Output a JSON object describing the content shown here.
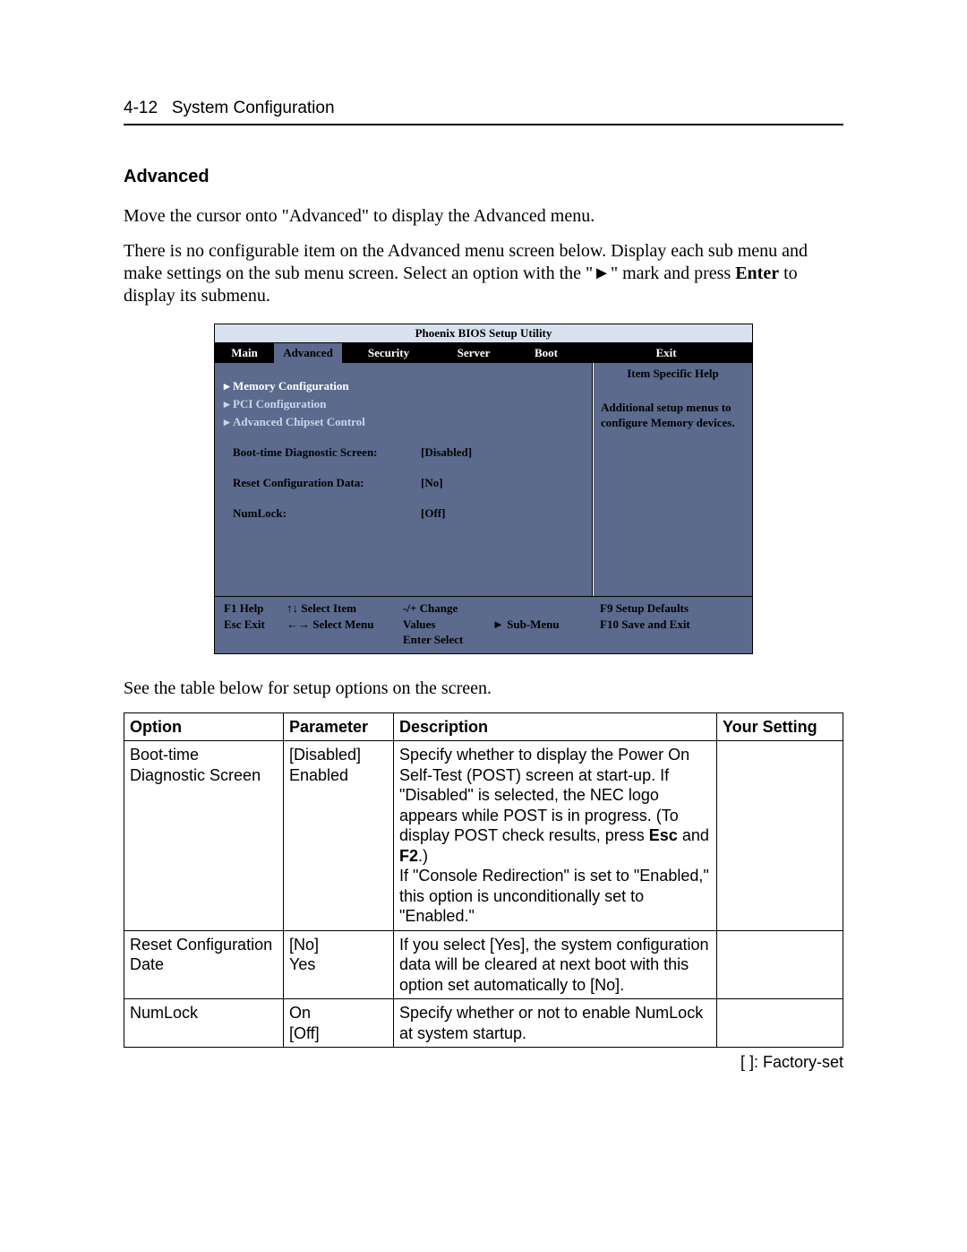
{
  "header": {
    "page_num": "4-12",
    "title": "System Configuration"
  },
  "section": {
    "heading": "Advanced",
    "para1": "Move the cursor onto \"Advanced\" to display the Advanced menu.",
    "para2_a": "There is no configurable item on the Advanced menu screen below. Display each sub menu and make settings on the sub menu screen. Select an option with the \"►\" mark and press ",
    "para2_bold": "Enter",
    "para2_b": " to display its submenu.",
    "caption": "See the table below for setup options on the screen."
  },
  "bios": {
    "title": "Phoenix BIOS Setup Utility",
    "tabs": {
      "main": "Main",
      "advanced": "Advanced",
      "security": "Security",
      "server": "Server",
      "boot": "Boot",
      "exit": "Exit"
    },
    "left": {
      "memory": "Memory Configuration",
      "pci": "PCI Configuration",
      "chipset": "Advanced Chipset Control",
      "bootdiag_lbl": "Boot-time Diagnostic Screen:",
      "bootdiag_val": "[Disabled]",
      "reset_lbl": "Reset Configuration Data:",
      "reset_val": "[No]",
      "numlock_lbl": "NumLock:",
      "numlock_val": "[Off]"
    },
    "right": {
      "title": "Item Specific Help",
      "body": "Additional setup menus to configure Memory devices."
    },
    "footer": {
      "f1": "F1  Help",
      "esc": "Esc Exit",
      "sel_item": "↑↓  Select Item",
      "sel_menu": "←→ Select Menu",
      "change": "-/+    Change Values",
      "enter": "Enter Select",
      "submenu": "►  Sub-Menu",
      "defaults": "F9  Setup Defaults",
      "save": "F10 Save and Exit"
    }
  },
  "table": {
    "head": {
      "option": "Option",
      "parameter": "Parameter",
      "description": "Description",
      "your": "Your Setting"
    },
    "rows": {
      "r0": {
        "option": "Boot-time Diagnostic Screen",
        "param_a": "[Disabled]",
        "param_b": "Enabled",
        "desc_a": "Specify whether to display the Power On Self-Test (POST) screen at start-up. If \"Disabled\" is selected, the NEC logo appears while POST is in progress. (To display POST check results, press ",
        "desc_esc": "Esc",
        "desc_b": " and ",
        "desc_f2": "F2",
        "desc_c": ".)",
        "desc_d": "If \"Console Redirection\" is set to \"Enabled,\" this option is unconditionally set to \"Enabled.\""
      },
      "r1": {
        "option": "Reset Configuration Date",
        "param_a": "[No]",
        "param_b": "Yes",
        "desc": "If you select [Yes], the system configuration data will be cleared at next boot with this option set automatically to [No]."
      },
      "r2": {
        "option": "NumLock",
        "param_a": "On",
        "param_b": "[Off]",
        "desc": "Specify whether or not to enable NumLock at system startup."
      }
    }
  },
  "factory_note": "[     ]:  Factory-set"
}
